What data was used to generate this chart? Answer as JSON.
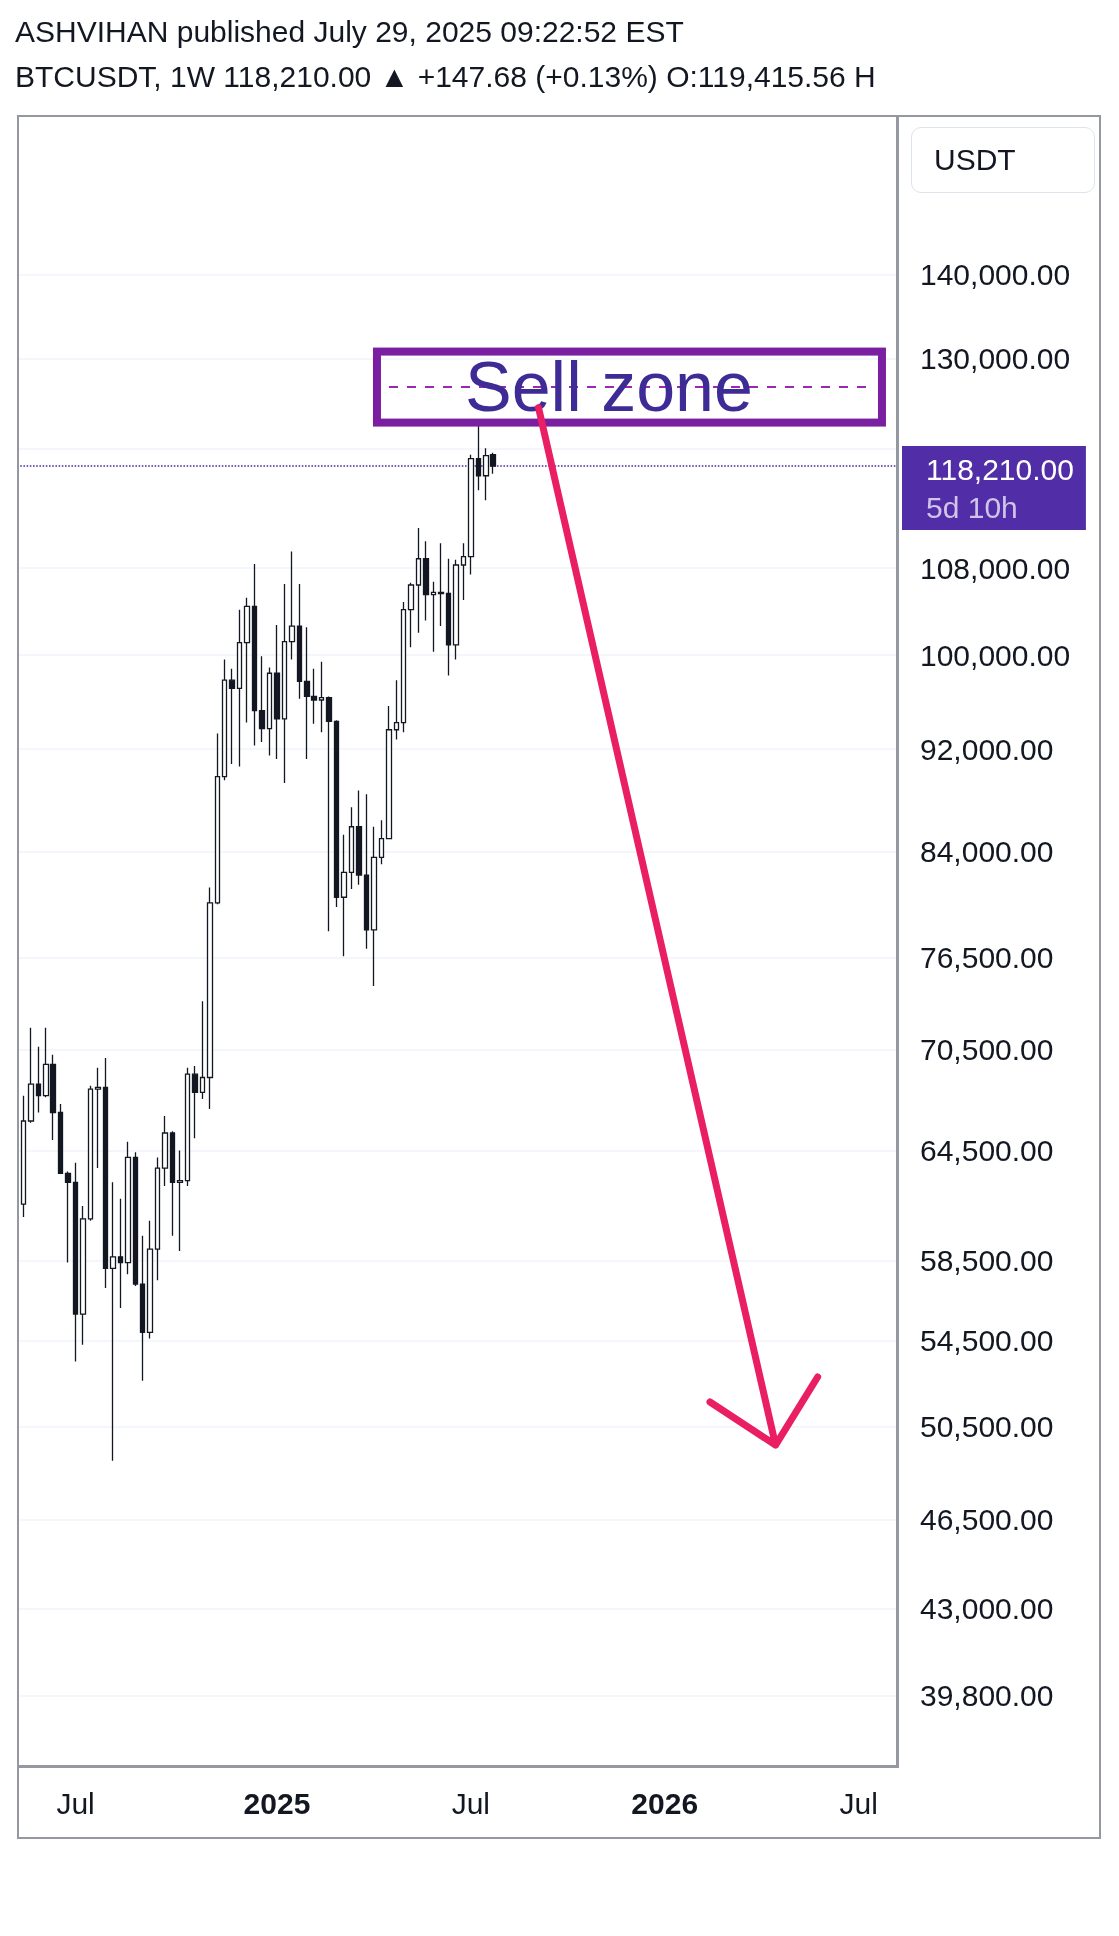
{
  "chart_data": {
    "type": "candlestick",
    "title": "ASHVIHAN published July 29, 2025 09:22:52 EST",
    "subtitle": "BTCUSDT, 1W  118,210.00 ▲ +147.68 (+0.13%) O:119,415.56 H",
    "ylabel": "USDT",
    "color": "#131722",
    "x": [
      "2024-05-13",
      "2024-05-20",
      "2024-05-27",
      "2024-06-03",
      "2024-06-10",
      "2024-06-17",
      "2024-06-24",
      "2024-07-01",
      "2024-07-08",
      "2024-07-15",
      "2024-07-22",
      "2024-07-29",
      "2024-08-05",
      "2024-08-12",
      "2024-08-19",
      "2024-08-26",
      "2024-09-02",
      "2024-09-09",
      "2024-09-16",
      "2024-09-23",
      "2024-09-30",
      "2024-10-07",
      "2024-10-14",
      "2024-10-21",
      "2024-10-28",
      "2024-11-04",
      "2024-11-11",
      "2024-11-18",
      "2024-11-25",
      "2024-12-02",
      "2024-12-09",
      "2024-12-16",
      "2024-12-23",
      "2024-12-30",
      "2025-01-06",
      "2025-01-13",
      "2025-01-20",
      "2025-01-27",
      "2025-02-03",
      "2025-02-10",
      "2025-02-17",
      "2025-02-24",
      "2025-03-03",
      "2025-03-10",
      "2025-03-17",
      "2025-03-24",
      "2025-03-31",
      "2025-04-07",
      "2025-04-14",
      "2025-04-21",
      "2025-04-28",
      "2025-05-05",
      "2025-05-12",
      "2025-05-19",
      "2025-05-26",
      "2025-06-02",
      "2025-06-09",
      "2025-06-16",
      "2025-06-23",
      "2025-06-30",
      "2025-07-07",
      "2025-07-14",
      "2025-07-21",
      "2025-07-28"
    ],
    "ohlc": [
      [
        61500,
        67700,
        60800,
        66200
      ],
      [
        66200,
        71900,
        66100,
        68400
      ],
      [
        68400,
        70700,
        66700,
        67700
      ],
      [
        67700,
        71900,
        67600,
        69600
      ],
      [
        69600,
        70200,
        65100,
        66700
      ],
      [
        66700,
        67200,
        63200,
        63200
      ],
      [
        63200,
        63300,
        58400,
        62700
      ],
      [
        62700,
        63800,
        53500,
        55800
      ],
      [
        55800,
        61400,
        54300,
        60700
      ],
      [
        60700,
        68300,
        60600,
        68100
      ],
      [
        68100,
        69400,
        63500,
        68200
      ],
      [
        68200,
        70000,
        57100,
        58100
      ],
      [
        58100,
        62700,
        49000,
        58700
      ],
      [
        58700,
        61800,
        56100,
        58400
      ],
      [
        58400,
        65000,
        57800,
        64100
      ],
      [
        64100,
        64400,
        57200,
        57300
      ],
      [
        57300,
        59800,
        52600,
        54900
      ],
      [
        54900,
        60600,
        54600,
        59100
      ],
      [
        59100,
        64100,
        57500,
        63500
      ],
      [
        63500,
        66500,
        62500,
        65500
      ],
      [
        65500,
        65600,
        59800,
        62700
      ],
      [
        62700,
        64500,
        59000,
        62800
      ],
      [
        62800,
        69400,
        62500,
        69000
      ],
      [
        69000,
        69500,
        65200,
        67900
      ],
      [
        67900,
        73600,
        67500,
        68800
      ],
      [
        68800,
        81400,
        66900,
        80300
      ],
      [
        80300,
        93300,
        80200,
        89800
      ],
      [
        89800,
        99600,
        89500,
        97800
      ],
      [
        97800,
        98800,
        90800,
        97100
      ],
      [
        97100,
        104100,
        90600,
        101100
      ],
      [
        101100,
        105200,
        94200,
        104400
      ],
      [
        104400,
        108400,
        92300,
        95200
      ],
      [
        95200,
        99900,
        92600,
        93700
      ],
      [
        93700,
        98900,
        91500,
        98400
      ],
      [
        98400,
        102700,
        91200,
        94500
      ],
      [
        94500,
        106500,
        89300,
        101200
      ],
      [
        101200,
        109600,
        99600,
        102600
      ],
      [
        102600,
        106500,
        96200,
        97700
      ],
      [
        97700,
        102500,
        91200,
        96400
      ],
      [
        96400,
        98800,
        94100,
        96100
      ],
      [
        96100,
        99400,
        93400,
        96300
      ],
      [
        96300,
        96400,
        78300,
        94300
      ],
      [
        94300,
        94400,
        80000,
        80700
      ],
      [
        80700,
        85300,
        76600,
        82500
      ],
      [
        82500,
        87400,
        81300,
        85900
      ],
      [
        85900,
        88700,
        81600,
        82300
      ],
      [
        82300,
        88400,
        77100,
        78400
      ],
      [
        78400,
        85900,
        74600,
        83600
      ],
      [
        83600,
        86400,
        83100,
        85000
      ],
      [
        85000,
        95600,
        85000,
        93600
      ],
      [
        93600,
        97800,
        92800,
        94200
      ],
      [
        94200,
        104800,
        93400,
        104100
      ],
      [
        104100,
        106600,
        100700,
        106400
      ],
      [
        106400,
        111900,
        102000,
        108900
      ],
      [
        108900,
        110600,
        103100,
        105500
      ],
      [
        105500,
        106700,
        100300,
        105700
      ],
      [
        105700,
        110400,
        102600,
        105600
      ],
      [
        105600,
        108900,
        98200,
        100900
      ],
      [
        100900,
        108800,
        99600,
        108300
      ],
      [
        108300,
        110400,
        105000,
        109100
      ],
      [
        109100,
        119400,
        107400,
        119000
      ],
      [
        119000,
        122500,
        115700,
        117200
      ],
      [
        117200,
        120100,
        114700,
        119300
      ],
      [
        119415.56,
        119600,
        117400,
        118210
      ]
    ],
    "log": true,
    "xlim": [
      "2024-05-07",
      "2026-08-11"
    ],
    "xticks": [
      {
        "value": "2024-07-01",
        "label": "Jul"
      },
      {
        "value": "2025-01-06",
        "label": "2025"
      },
      {
        "value": "2025-07-07",
        "label": "Jul"
      },
      {
        "value": "2026-01-05",
        "label": "2026"
      },
      {
        "value": "2026-07-06",
        "label": "Jul"
      }
    ],
    "ylim": [
      37400,
      161300
    ],
    "yticks": [
      {
        "value": 39800,
        "label": "39,800.00"
      },
      {
        "value": 43000,
        "label": "43,000.00"
      },
      {
        "value": 46500,
        "label": "46,500.00"
      },
      {
        "value": 50500,
        "label": "50,500.00"
      },
      {
        "value": 54500,
        "label": "54,500.00"
      },
      {
        "value": 58500,
        "label": "58,500.00"
      },
      {
        "value": 64500,
        "label": "64,500.00"
      },
      {
        "value": 70500,
        "label": "70,500.00"
      },
      {
        "value": 76500,
        "label": "76,500.00"
      },
      {
        "value": 84000,
        "label": "84,000.00"
      },
      {
        "value": 92000,
        "label": "92,000.00"
      },
      {
        "value": 100000,
        "label": "100,000.00"
      },
      {
        "value": 108000,
        "label": "108,000.00"
      },
      {
        "value": 120000,
        "label": null
      },
      {
        "value": 130000,
        "label": "130,000.00"
      },
      {
        "value": 140000,
        "label": "140,000.00"
      }
    ],
    "grid": "y",
    "ref_lines": [
      {
        "axis": "y",
        "value": 118210,
        "label": "118,210.00\n5d 10h",
        "color": "#512da8",
        "line_style": "dotted"
      }
    ],
    "annotations": [
      "Sell zone"
    ]
  }
}
